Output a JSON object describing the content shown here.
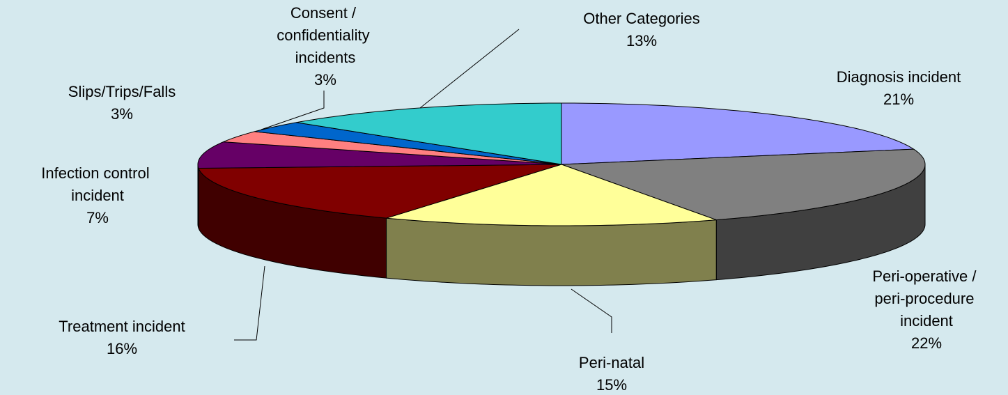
{
  "chart_data": {
    "type": "pie",
    "categories": [
      "Diagnosis incident",
      "Peri-operative / peri-procedure incident",
      "Peri-natal",
      "Treatment incident",
      "Infection control incident",
      "Slips/Trips/Falls",
      "Consent / confidentiality incidents",
      "Other Categories"
    ],
    "values": [
      21,
      22,
      15,
      16,
      7,
      3,
      3,
      13
    ],
    "value_labels": [
      "21%",
      "22%",
      "15%",
      "16%",
      "7%",
      "3%",
      "3%",
      "13%"
    ],
    "colors": [
      "#9999ff",
      "#808080",
      "#ffff99",
      "#800000",
      "#660066",
      "#ff8080",
      "#0066cc",
      "#33cccc"
    ]
  }
}
